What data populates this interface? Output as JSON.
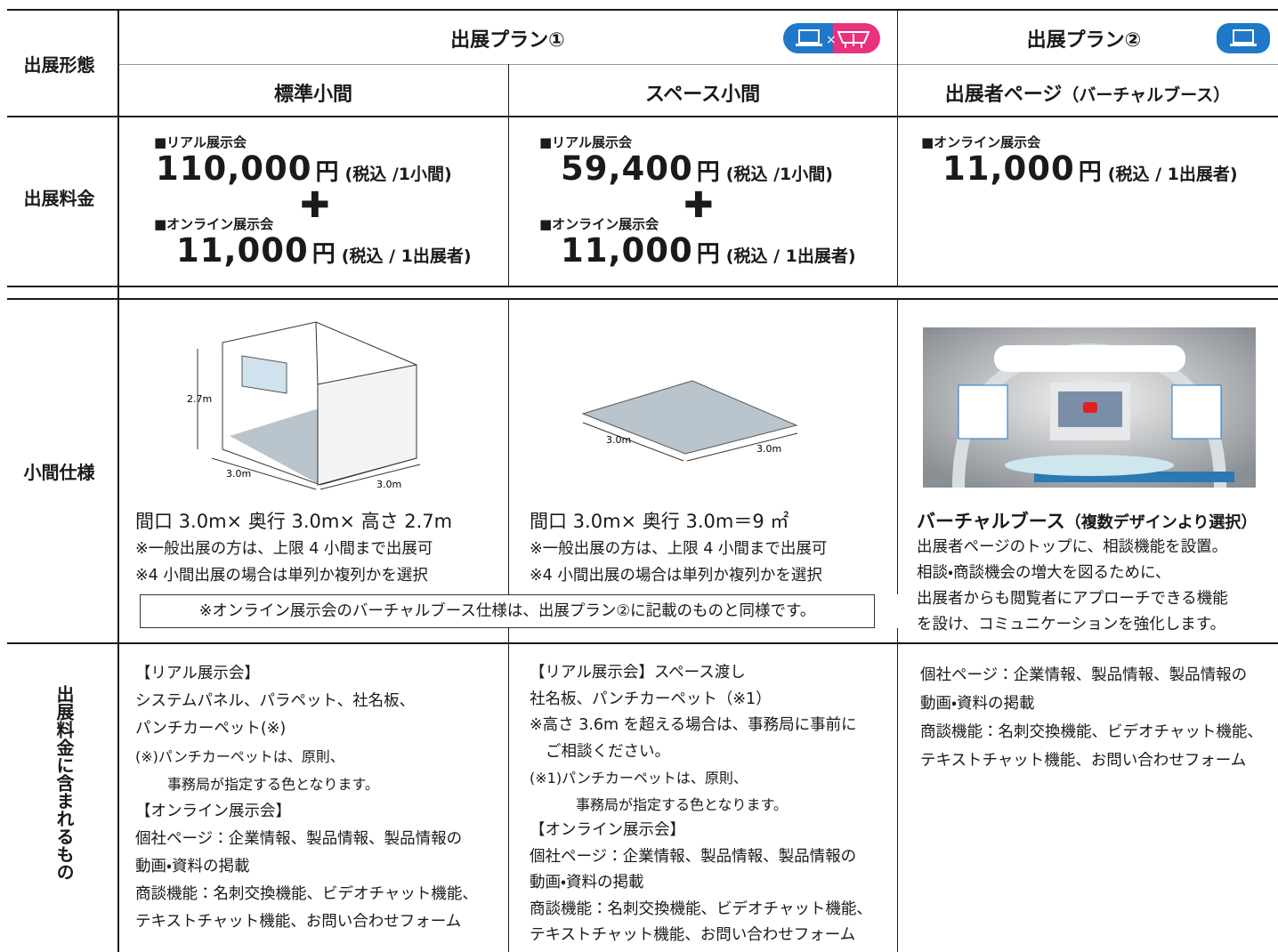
{
  "row_labels": {
    "format": "出展形態",
    "fee": "出展料金",
    "spec": "小間仕様",
    "included": "出展料金に含まれるもの"
  },
  "header": {
    "plan1": "出展プラン①",
    "plan2": "出展プラン②",
    "columns": [
      {
        "name": "標準小間"
      },
      {
        "name": "スペース小間"
      },
      {
        "name": "出展者ページ",
        "note": "（バーチャルブース）"
      }
    ]
  },
  "fees": [
    {
      "real": {
        "label": "■リアル展示会",
        "price": "110,000",
        "unit": "円",
        "note": "(税込 /1小間)"
      },
      "online": {
        "label": "■オンライン展示会",
        "price": "11,000",
        "unit": "円",
        "note": "(税込 / 1出展者)"
      }
    },
    {
      "real": {
        "label": "■リアル展示会",
        "price": "59,400",
        "unit": "円",
        "note": "(税込 /1小間)"
      },
      "online": {
        "label": "■オンライン展示会",
        "price": "11,000",
        "unit": "円",
        "note": "(税込 / 1出展者)"
      }
    },
    {
      "online": {
        "label": "■オンライン展示会",
        "price": "11,000",
        "unit": "円",
        "note": "(税込 / 1出展者)"
      }
    }
  ],
  "spec": {
    "columns": [
      {
        "dims": [
          "2.7m",
          "3.0m",
          "3.0m"
        ],
        "title": "間口 3.0m× 奥行 3.0m× 高さ 2.7m",
        "notes": [
          "※一般出展の方は、上限 4 小間まで出展可",
          "※4 小間出展の場合は単列か複列かを選択"
        ]
      },
      {
        "dims": [
          "3.0m",
          "3.0m"
        ],
        "title": "間口 3.0m× 奥行 3.0m＝9 ㎡",
        "notes": [
          "※一般出展の方は、上限 4 小間まで出展可",
          "※4 小間出展の場合は単列か複列かを選択"
        ]
      },
      {
        "title": "バーチャルブース",
        "title_note": "（複数デザインより選択）",
        "notes": [
          "出展者ページのトップに、相談機能を設置。",
          "相談・商談機会の増大を図るために、",
          "出展者からも閲覧者にアプローチできる機能",
          "を設け、コミュニケーションを強化します。"
        ]
      }
    ],
    "box_note": "※オンライン展示会のバーチャルブース仕様は、出展プラン②に記載のものと同様です。"
  },
  "included": [
    [
      "【リアル展示会】",
      "システムパネル、パラペット、社名板、",
      "パンチカーペット(※)",
      "(※)パンチカーペットは、原則、",
      "事務局が指定する色となります。",
      "【オンライン展示会】",
      "個社ページ：企業情報、製品情報、製品情報の",
      "動画・資料の掲載",
      "商談機能：名刺交換機能、ビデオチャット機能、",
      "テキストチャット機能、お問い合わせフォーム"
    ],
    [
      "【リアル展示会】スペース渡し",
      "社名板、パンチカーペット（※1）",
      "※高さ 3.6m を超える場合は、事務局に事前に",
      "ご相談ください。",
      "(※1)パンチカーペットは、原則、",
      "事務局が指定する色となります。",
      "【オンライン展示会】",
      "個社ページ：企業情報、製品情報、製品情報の",
      "動画・資料の掲載",
      "商談機能：名刺交換機能、ビデオチャット機能、",
      "テキストチャット機能、お問い合わせフォーム"
    ],
    [
      "個社ページ：企業情報、製品情報、製品情報の",
      "動画・資料の掲載",
      "商談機能：名刺交換機能、ビデオチャット機能、",
      "テキストチャット機能、お問い合わせフォーム"
    ]
  ]
}
